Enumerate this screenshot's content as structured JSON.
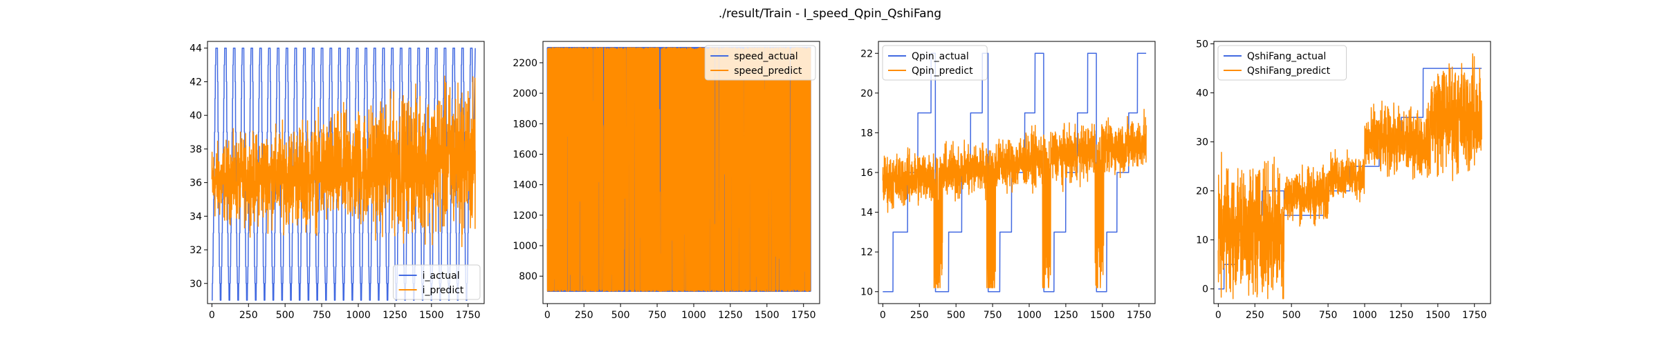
{
  "figure": {
    "suptitle": "./result/Train - I_speed_Qpin_QshiFang"
  },
  "colors": {
    "actual": "#4169e1",
    "predict": "#ff8c00"
  },
  "chart_data": [
    {
      "type": "line",
      "xlim": [
        -30,
        1860
      ],
      "ylim": [
        28.8,
        44.4
      ],
      "xticks": [
        0,
        250,
        500,
        750,
        1000,
        1250,
        1500,
        1750
      ],
      "yticks": [
        30,
        32,
        34,
        36,
        38,
        40,
        42,
        44
      ],
      "legend_position": "lower-right",
      "n_points": 1800,
      "series": [
        {
          "name": "i_actual",
          "pattern": "cycle",
          "period": 60,
          "levels": [
            29,
            30,
            31,
            33,
            35,
            37,
            39,
            41,
            43,
            44,
            44,
            44,
            44,
            42,
            39,
            36,
            33,
            31,
            30,
            29
          ],
          "end_rise_to": 44
        },
        {
          "name": "i_predict",
          "pattern": "noise_trend",
          "base_start": 36,
          "base_end": 37.5,
          "noise_start": 2.0,
          "noise_end": 4.0,
          "clip": [
            30.2,
            43.2
          ]
        }
      ]
    },
    {
      "type": "line",
      "xlim": [
        -30,
        1860
      ],
      "ylim": [
        620,
        2340
      ],
      "xticks": [
        0,
        250,
        500,
        750,
        1000,
        1250,
        1500,
        1750
      ],
      "yticks": [
        800,
        1000,
        1200,
        1400,
        1600,
        1800,
        2000,
        2200
      ],
      "legend_position": "upper-right",
      "n_points": 1800,
      "series": [
        {
          "name": "speed_actual",
          "pattern": "binary",
          "low": 700,
          "high": 2300
        },
        {
          "name": "speed_predict",
          "pattern": "binary_noisy",
          "low": 700,
          "high": 2300
        }
      ]
    },
    {
      "type": "line",
      "xlim": [
        -30,
        1860
      ],
      "ylim": [
        9.4,
        22.6
      ],
      "xticks": [
        0,
        250,
        500,
        750,
        1000,
        1250,
        1500,
        1750
      ],
      "yticks": [
        10,
        12,
        14,
        16,
        18,
        20,
        22
      ],
      "legend_position": "upper-left",
      "n_points": 1800,
      "series": [
        {
          "name": "Qpin_actual",
          "pattern": "steps",
          "steps": [
            [
              0,
              10
            ],
            [
              70,
              13
            ],
            [
              170,
              16
            ],
            [
              240,
              19
            ],
            [
              330,
              22
            ],
            [
              360,
              10
            ],
            [
              450,
              13
            ],
            [
              540,
              16
            ],
            [
              600,
              19
            ],
            [
              680,
              22
            ],
            [
              720,
              10
            ],
            [
              800,
              13
            ],
            [
              880,
              16
            ],
            [
              970,
              19
            ],
            [
              1040,
              22
            ],
            [
              1100,
              10
            ],
            [
              1170,
              13
            ],
            [
              1250,
              16
            ],
            [
              1330,
              19
            ],
            [
              1400,
              22
            ],
            [
              1460,
              10
            ],
            [
              1530,
              13
            ],
            [
              1600,
              16
            ],
            [
              1680,
              19
            ],
            [
              1740,
              22
            ],
            [
              1800,
              22
            ]
          ]
        },
        {
          "name": "Qpin_predict",
          "pattern": "noise_dips",
          "base_start": 15.5,
          "base_end": 17.5,
          "noise": 1.2,
          "dips": [
            360,
            720,
            1100,
            1460
          ],
          "clip": [
            10.2,
            19.6
          ]
        }
      ]
    },
    {
      "type": "line",
      "xlim": [
        -30,
        1860
      ],
      "ylim": [
        -3,
        50.5
      ],
      "xticks": [
        0,
        250,
        500,
        750,
        1000,
        1250,
        1500,
        1750
      ],
      "yticks": [
        0,
        10,
        20,
        30,
        40,
        50
      ],
      "legend_position": "upper-left",
      "n_points": 1800,
      "series": [
        {
          "name": "QshiFang_actual",
          "pattern": "steps",
          "steps": [
            [
              0,
              0
            ],
            [
              40,
              5
            ],
            [
              120,
              10
            ],
            [
              200,
              15
            ],
            [
              300,
              20
            ],
            [
              450,
              15
            ],
            [
              600,
              15
            ],
            [
              720,
              20
            ],
            [
              900,
              25
            ],
            [
              1000,
              25
            ],
            [
              1100,
              30
            ],
            [
              1250,
              35
            ],
            [
              1400,
              45
            ],
            [
              1800,
              45
            ]
          ]
        },
        {
          "name": "QshiFang_predict",
          "pattern": "noise_regimes",
          "regimes": [
            [
              0,
              450,
              12,
              12
            ],
            [
              450,
              750,
              19,
              5
            ],
            [
              750,
              1000,
              23,
              4
            ],
            [
              1000,
              1450,
              30,
              6
            ],
            [
              1450,
              1800,
              35,
              10
            ]
          ],
          "clip": [
            -2,
            48
          ]
        }
      ]
    }
  ]
}
